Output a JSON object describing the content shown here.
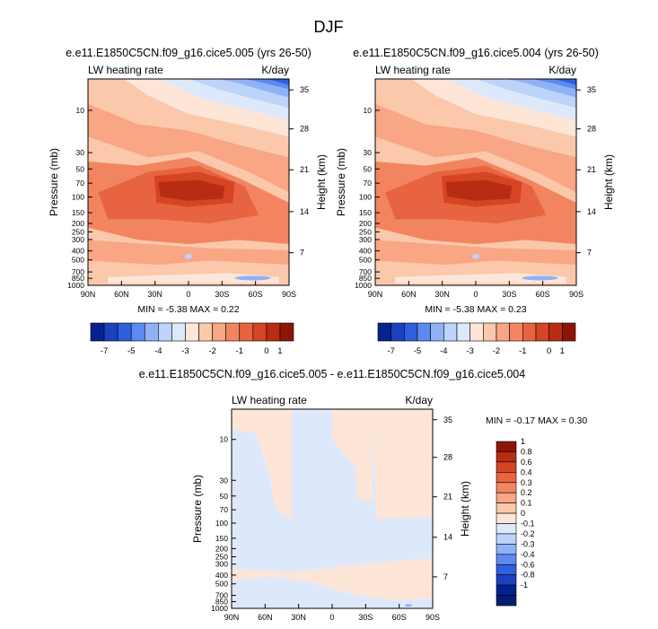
{
  "figure": {
    "title": "DJF"
  },
  "chart_data": [
    {
      "type": "heatmap",
      "title": "e.e11.E1850C5CN.f09_g16.cice5.005 (yrs 26-50)",
      "variable_label": "LW heating rate",
      "units_label": "K/day",
      "ylabel": "Pressure (mb)",
      "ylabel_right": "Height (km)",
      "x_ticks": [
        "90N",
        "60N",
        "30N",
        "0",
        "30S",
        "60S",
        "90S"
      ],
      "y_ticks": [
        "10",
        "30",
        "50",
        "70",
        "100",
        "150",
        "200",
        "250",
        "300",
        "400",
        "500",
        "700",
        "850",
        "1000"
      ],
      "y_ticks_right": [
        "35",
        "28",
        "21",
        "14",
        "7"
      ],
      "stats": {
        "min_label": "MIN =",
        "min": "-5.38",
        "max_label": "MAX =",
        "max": "0.22"
      },
      "colorbar": {
        "orientation": "horizontal",
        "labels": [
          "-7",
          "-5",
          "-4",
          "-3",
          "-2",
          "-1",
          "0",
          "1"
        ],
        "colors": [
          "#05208f",
          "#1b40c0",
          "#2d5fe0",
          "#5d8af0",
          "#8fb2f7",
          "#bcd3fa",
          "#dde9fb",
          "#fde6d8",
          "#fbc8ab",
          "#f8a683",
          "#f28560",
          "#e86440",
          "#d54423",
          "#b82c12",
          "#8c1508"
        ]
      }
    },
    {
      "type": "heatmap",
      "title": "e.e11.E1850C5CN.f09_g16.cice5.004 (yrs 26-50)",
      "variable_label": "LW heating rate",
      "units_label": "K/day",
      "ylabel": "Pressure (mb)",
      "ylabel_right": "Height (km)",
      "x_ticks": [
        "90N",
        "60N",
        "30N",
        "0",
        "30S",
        "60S",
        "90S"
      ],
      "y_ticks": [
        "10",
        "30",
        "50",
        "70",
        "100",
        "150",
        "200",
        "250",
        "300",
        "400",
        "500",
        "700",
        "850",
        "1000"
      ],
      "y_ticks_right": [
        "35",
        "28",
        "21",
        "14",
        "7"
      ],
      "stats": {
        "min_label": "MIN =",
        "min": "-5.38",
        "max_label": "MAX =",
        "max": "0.23"
      },
      "colorbar": {
        "orientation": "horizontal",
        "labels": [
          "-7",
          "-5",
          "-4",
          "-3",
          "-2",
          "-1",
          "0",
          "1"
        ],
        "colors": [
          "#05208f",
          "#1b40c0",
          "#2d5fe0",
          "#5d8af0",
          "#8fb2f7",
          "#bcd3fa",
          "#dde9fb",
          "#fde6d8",
          "#fbc8ab",
          "#f8a683",
          "#f28560",
          "#e86440",
          "#d54423",
          "#b82c12",
          "#8c1508"
        ]
      }
    },
    {
      "type": "heatmap",
      "title": "e.e11.E1850C5CN.f09_g16.cice5.005 - e.e11.E1850C5CN.f09_g16.cice5.004",
      "variable_label": "LW heating rate",
      "units_label": "K/day",
      "ylabel": "Pressure (mb)",
      "ylabel_right": "Height (km)",
      "x_ticks": [
        "90N",
        "60N",
        "30N",
        "0",
        "30S",
        "60S",
        "90S"
      ],
      "y_ticks": [
        "10",
        "30",
        "50",
        "70",
        "100",
        "150",
        "200",
        "250",
        "300",
        "400",
        "500",
        "700",
        "850",
        "1000"
      ],
      "y_ticks_right": [
        "35",
        "28",
        "21",
        "14",
        "7"
      ],
      "stats": {
        "min_label": "MIN =",
        "min": "-0.17",
        "max_label": "MAX =",
        "max": "0.30"
      },
      "colorbar": {
        "orientation": "vertical",
        "labels": [
          "1",
          "0.8",
          "0.6",
          "0.4",
          "0.3",
          "0.2",
          "0.1",
          "0",
          "-0.1",
          "-0.2",
          "-0.3",
          "-0.4",
          "-0.6",
          "-0.8",
          "-1"
        ],
        "colors": [
          "#8c1508",
          "#b82c12",
          "#d54423",
          "#e86440",
          "#f28560",
          "#f8a683",
          "#fbc8ab",
          "#fde6d8",
          "#dde9fb",
          "#bcd3fa",
          "#8fb2f7",
          "#5d8af0",
          "#2d5fe0",
          "#1b40c0",
          "#05208f",
          "#001f70"
        ]
      }
    }
  ]
}
